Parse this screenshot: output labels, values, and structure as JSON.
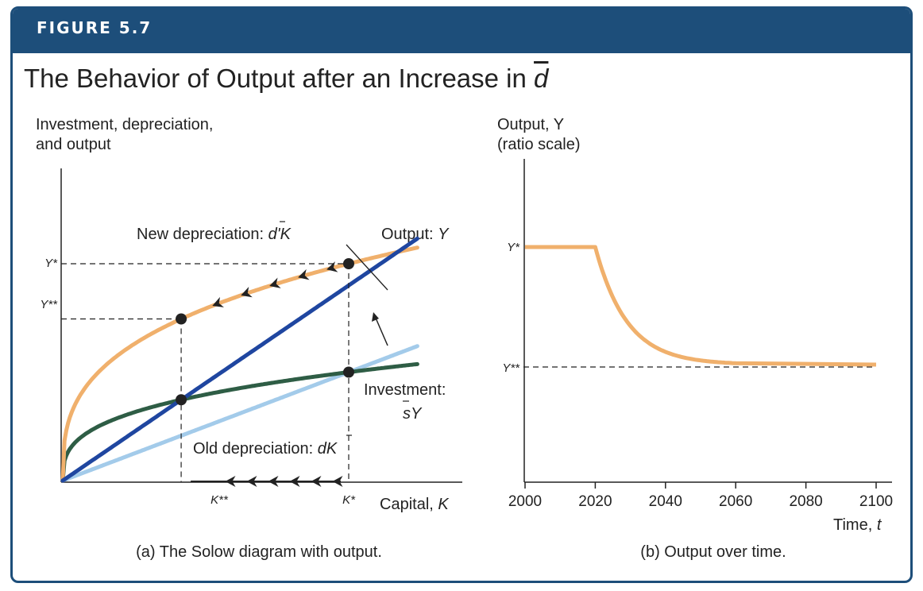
{
  "figure_label": "FIGURE 5.7",
  "title_prefix": "The Behavior of Output after an Increase in ",
  "title_symbol": "d",
  "colors": {
    "banner": "#1d4e7a",
    "output": "#f0b06c",
    "new_depreciation": "#1f46a0",
    "investment": "#2e5d45",
    "old_depreciation": "#a3cbea",
    "dot": "#222222"
  },
  "chart_data": [
    {
      "type": "line",
      "caption": "(a) The Solow diagram with output.",
      "ylabel_line1": "Investment, depreciation,",
      "ylabel_line2": "and output",
      "xlabel_text": "Capital, ",
      "xlabel_symbol": "K",
      "y_ticks": [
        "Y*",
        "Y**"
      ],
      "x_ticks": [
        "K**",
        "K*"
      ],
      "scale": {
        "alpha": 0.3333,
        "A": 1.0,
        "s": 0.5,
        "kstar": 1.0,
        "kmax": 1.24
      },
      "series": [
        {
          "key": "output",
          "label": "Output: ",
          "label_symbol": "Y"
        },
        {
          "key": "investment",
          "label_line1": "Investment:",
          "label_line2": "sY"
        },
        {
          "key": "new_depreciation",
          "label": "New depreciation: ",
          "label_symbol": "d'K"
        },
        {
          "key": "old_depreciation",
          "label": "Old depreciation: ",
          "label_symbol": "dK"
        }
      ],
      "old_depreciation_rate": 0.5,
      "new_depreciation_rate": 0.9
    },
    {
      "type": "line",
      "caption": "(b) Output over time.",
      "ylabel_line1": "Output, Y",
      "ylabel_line2": "(ratio scale)",
      "xlabel_text": "Time, ",
      "xlabel_symbol": "t",
      "y_ticks": [
        "Y*",
        "Y**"
      ],
      "x_tick_labels": [
        "2000",
        "2020",
        "2040",
        "2060",
        "2080",
        "2100"
      ],
      "x": [
        2000,
        2020,
        2025,
        2030,
        2035,
        2040,
        2045,
        2050,
        2055,
        2060,
        2070,
        2080,
        2090,
        2100
      ],
      "values": [
        1.0,
        1.0,
        0.87,
        0.76,
        0.67,
        0.6,
        0.55,
        0.52,
        0.505,
        0.5,
        0.5,
        0.5,
        0.5,
        0.5
      ],
      "ylim": [
        0,
        1.2
      ],
      "xlim": [
        2000,
        2100
      ]
    }
  ]
}
